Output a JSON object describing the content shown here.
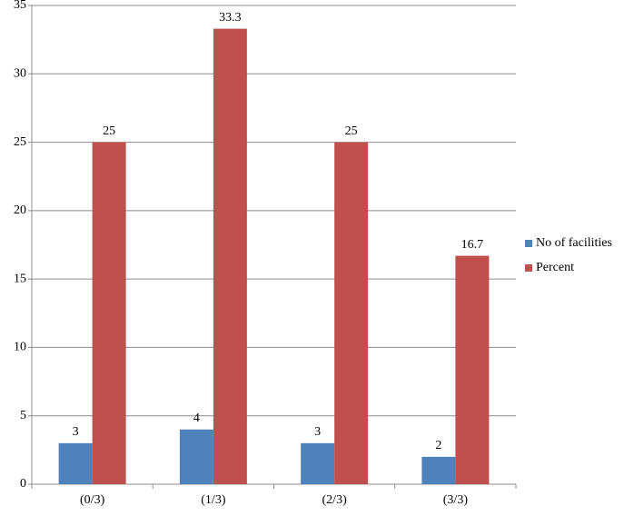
{
  "chart_data": {
    "type": "bar",
    "categories": [
      "(0/3)",
      "(1/3)",
      "(2/3)",
      "(3/3)"
    ],
    "series": [
      {
        "name": "No of facilities",
        "color": "#4f81bd",
        "values": [
          3,
          4,
          3,
          2
        ]
      },
      {
        "name": "Percent",
        "color": "#c0504d",
        "values": [
          25,
          33.3,
          25,
          16.7
        ]
      }
    ],
    "ylim": [
      0,
      35
    ],
    "yticks": [
      0,
      5,
      10,
      15,
      20,
      25,
      30,
      35
    ],
    "grid": true,
    "legend": "right"
  }
}
